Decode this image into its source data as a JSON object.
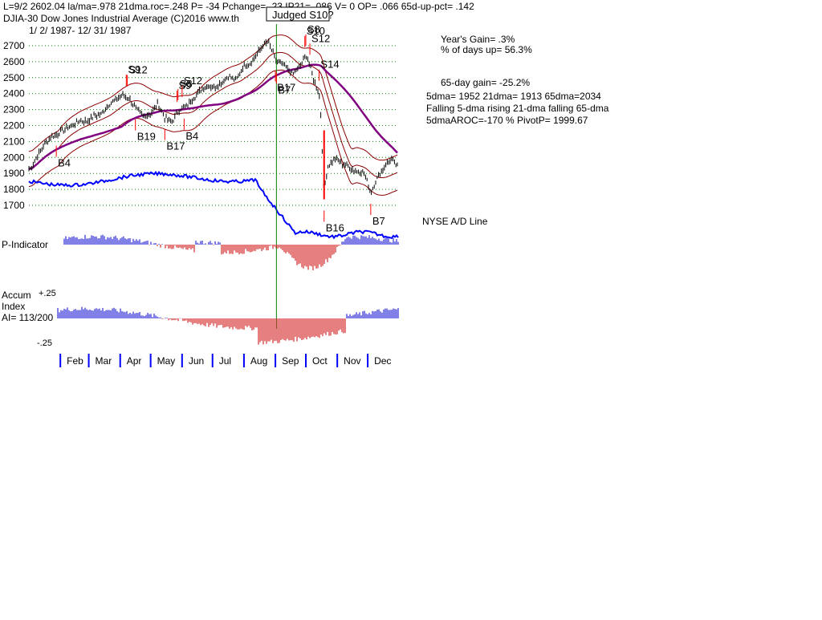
{
  "header": {
    "line1": "L=9/2  2602.04  la/ma=.978 21dma.roc=.248 P= -34  Pchange= -23 IP21= .086 V= 0 OP= .066 65d-up-pct= .142",
    "line2": "DJIA-30  Dow Jones Industrial Average   (C)2016 www.th",
    "line3": "1/ 2/ 1987- 12/ 31/ 1987",
    "judged_box": "Judged S10?"
  },
  "stats": {
    "years_gain": "Year's Gain= .3%",
    "days_up": "% of days up= 56.3%",
    "gain65": "65-day gain= -25.2%",
    "dma": "5dma= 1952 21dma= 1913 65dma=2034",
    "trend": "Falling 5-dma  rising 21-dma  falling 65-dma",
    "aroc": "5dmaAROC=-170 %  PivotP= 1999.67"
  },
  "panels": {
    "ad_line": "NYSE A/D Line",
    "p_indicator": "P-Indicator",
    "accum_top": "Accum",
    "accum_mid": "Index",
    "accum_ai": "AI= 113/200",
    "accum_pos": "+.25",
    "accum_neg": "-.25"
  },
  "colors": {
    "price": "#000000",
    "ma21_bands": "#8b0000",
    "ma65": "#800080",
    "ad_line": "#0000ff",
    "signal": "#ff0000",
    "positive_bar": "#0000cc",
    "negative_bar": "#cc0000",
    "grid": "#008000",
    "cursor_line": "#008000",
    "month_tick": "#0000ff"
  },
  "chart_data": {
    "type": "line",
    "title": "DJIA-30  Dow Jones Industrial Average",
    "ylim": [
      1650,
      2750
    ],
    "y_ticks": [
      "2700",
      "2600",
      "2500",
      "2400",
      "2300",
      "2200",
      "2100",
      "2000",
      "1900",
      "1800",
      "1700"
    ],
    "x_ticks": [
      "Feb",
      "Mar",
      "Apr",
      "May",
      "Jun",
      "Jul",
      "Aug",
      "Sep",
      "Oct",
      "Nov",
      "Dec"
    ],
    "grid": "horizontal dotted",
    "price_path": [
      [
        "1987-01-02",
        1927
      ],
      [
        "1987-01-09",
        2005
      ],
      [
        "1987-01-16",
        2080
      ],
      [
        "1987-01-23",
        2130
      ],
      [
        "1987-01-30",
        2150
      ],
      [
        "1987-02-06",
        2180
      ],
      [
        "1987-02-13",
        2200
      ],
      [
        "1987-02-20",
        2230
      ],
      [
        "1987-02-27",
        2225
      ],
      [
        "1987-03-06",
        2260
      ],
      [
        "1987-03-13",
        2270
      ],
      [
        "1987-03-20",
        2330
      ],
      [
        "1987-03-27",
        2360
      ],
      [
        "1987-04-03",
        2390
      ],
      [
        "1987-04-10",
        2370
      ],
      [
        "1987-04-17",
        2300
      ],
      [
        "1987-04-24",
        2260
      ],
      [
        "1987-05-01",
        2270
      ],
      [
        "1987-05-08",
        2340
      ],
      [
        "1987-05-15",
        2250
      ],
      [
        "1987-05-22",
        2220
      ],
      [
        "1987-05-29",
        2300
      ],
      [
        "1987-06-05",
        2320
      ],
      [
        "1987-06-12",
        2370
      ],
      [
        "1987-06-19",
        2420
      ],
      [
        "1987-06-26",
        2450
      ],
      [
        "1987-07-03",
        2440
      ],
      [
        "1987-07-10",
        2470
      ],
      [
        "1987-07-17",
        2510
      ],
      [
        "1987-07-24",
        2480
      ],
      [
        "1987-07-31",
        2570
      ],
      [
        "1987-08-07",
        2590
      ],
      [
        "1987-08-14",
        2650
      ],
      [
        "1987-08-21",
        2710
      ],
      [
        "1987-08-25",
        2722
      ],
      [
        "1987-09-02",
        2602
      ],
      [
        "1987-09-11",
        2570
      ],
      [
        "1987-09-18",
        2520
      ],
      [
        "1987-09-25",
        2570
      ],
      [
        "1987-10-02",
        2640
      ],
      [
        "1987-10-06",
        2550
      ],
      [
        "1987-10-09",
        2480
      ],
      [
        "1987-10-14",
        2410
      ],
      [
        "1987-10-16",
        2250
      ],
      [
        "1987-10-19",
        1738
      ],
      [
        "1987-10-20",
        1840
      ],
      [
        "1987-10-23",
        1950
      ],
      [
        "1987-10-30",
        1990
      ],
      [
        "1987-11-06",
        1960
      ],
      [
        "1987-11-13",
        1940
      ],
      [
        "1987-11-20",
        1910
      ],
      [
        "1987-11-27",
        1910
      ],
      [
        "1987-12-04",
        1780
      ],
      [
        "1987-12-11",
        1880
      ],
      [
        "1987-12-18",
        1950
      ],
      [
        "1987-12-24",
        1990
      ],
      [
        "1987-12-31",
        1939
      ]
    ],
    "series": [
      {
        "name": "21-dma"
      },
      {
        "name": "65-dma"
      }
    ],
    "signals": [
      {
        "label": "B4",
        "date": "1987-01-28"
      },
      {
        "label": "S9",
        "date": "1987-04-07"
      },
      {
        "label": "S12",
        "date": "1987-04-08"
      },
      {
        "label": "B19",
        "date": "1987-04-16"
      },
      {
        "label": "B17",
        "date": "1987-05-15"
      },
      {
        "label": "B4",
        "date": "1987-06-03"
      },
      {
        "label": "S8",
        "date": "1987-05-28"
      },
      {
        "label": "S9",
        "date": "1987-05-27"
      },
      {
        "label": "S12",
        "date": "1987-06-01"
      },
      {
        "label": "B17",
        "date": "1987-09-01"
      },
      {
        "label": "B7",
        "date": "1987-09-02"
      },
      {
        "label": "S10",
        "date": "1987-09-30"
      },
      {
        "label": "S8",
        "date": "1987-10-01"
      },
      {
        "label": "S12",
        "date": "1987-10-05"
      },
      {
        "label": "S14",
        "date": "1987-10-14"
      },
      {
        "label": "B16",
        "date": "1987-10-19"
      },
      {
        "label": "B7",
        "date": "1987-12-04"
      }
    ]
  }
}
